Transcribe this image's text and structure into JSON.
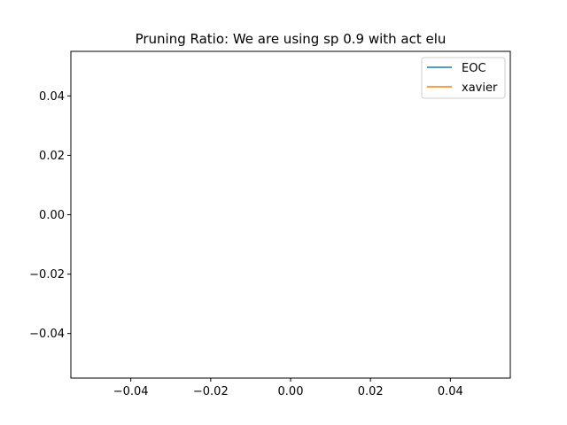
{
  "chart_data": {
    "type": "line",
    "title": "Pruning Ratio: We are using sp 0.9 with act elu",
    "xlabel": "",
    "ylabel": "",
    "xlim": [
      -0.055,
      0.055
    ],
    "ylim": [
      -0.055,
      0.055
    ],
    "x_ticks": [
      -0.04,
      -0.02,
      0.0,
      0.02,
      0.04
    ],
    "y_ticks": [
      -0.04,
      -0.02,
      0.0,
      0.02,
      0.04
    ],
    "x_tick_labels": [
      "−0.04",
      "−0.02",
      "0.00",
      "0.02",
      "0.04"
    ],
    "y_tick_labels": [
      "−0.04",
      "−0.02",
      "0.00",
      "0.02",
      "0.04"
    ],
    "grid": false,
    "legend_position": "top-right",
    "series": [
      {
        "name": "EOC",
        "color": "#1f77b4",
        "x": [],
        "y": []
      },
      {
        "name": "xavier",
        "color": "#ff7f0e",
        "x": [],
        "y": []
      }
    ]
  }
}
